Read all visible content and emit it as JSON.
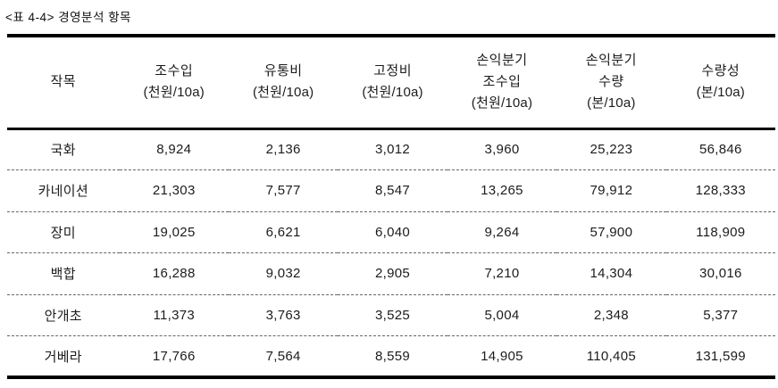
{
  "doc": {
    "caption": "<표 4-4> 경영분석 항목"
  },
  "table": {
    "columns": [
      {
        "line1": "작목",
        "line2": "",
        "unit": ""
      },
      {
        "line1": "조수입",
        "line2": "",
        "unit": "(천원/10a)"
      },
      {
        "line1": "유통비",
        "line2": "",
        "unit": "(천원/10a)"
      },
      {
        "line1": "고정비",
        "line2": "",
        "unit": "(천원/10a)"
      },
      {
        "line1": "손익분기",
        "line2": "조수입",
        "unit": "(천원/10a)"
      },
      {
        "line1": "손익분기",
        "line2": "수량",
        "unit": "(본/10a)"
      },
      {
        "line1": "수량성",
        "line2": "",
        "unit": "(본/10a)"
      }
    ],
    "rows": [
      {
        "crop": "국화",
        "values": [
          "8,924",
          "2,136",
          "3,012",
          "3,960",
          "25,223",
          "56,846"
        ]
      },
      {
        "crop": "카네이션",
        "values": [
          "21,303",
          "7,577",
          "8,547",
          "13,265",
          "79,912",
          "128,333"
        ]
      },
      {
        "crop": "장미",
        "values": [
          "19,025",
          "6,621",
          "6,040",
          "9,264",
          "57,900",
          "118,909"
        ]
      },
      {
        "crop": "백합",
        "values": [
          "16,288",
          "9,032",
          "2,905",
          "7,210",
          "14,304",
          "30,016"
        ]
      },
      {
        "crop": "안개초",
        "values": [
          "11,373",
          "3,763",
          "3,525",
          "5,004",
          "2,348",
          "5,377"
        ]
      },
      {
        "crop": "거베라",
        "values": [
          "17,766",
          "7,564",
          "8,559",
          "14,905",
          "110,405",
          "131,599"
        ]
      }
    ]
  },
  "chart_data": {
    "type": "table",
    "title": "경영분석 항목",
    "columns": [
      "작목",
      "조수입 (천원/10a)",
      "유통비 (천원/10a)",
      "고정비 (천원/10a)",
      "손익분기 조수입 (천원/10a)",
      "손익분기 수량 (본/10a)",
      "수량성 (본/10a)"
    ],
    "rows": [
      [
        "국화",
        8924,
        2136,
        3012,
        3960,
        25223,
        56846
      ],
      [
        "카네이션",
        21303,
        7577,
        8547,
        13265,
        79912,
        128333
      ],
      [
        "장미",
        19025,
        6621,
        6040,
        9264,
        57900,
        118909
      ],
      [
        "백합",
        16288,
        9032,
        2905,
        7210,
        14304,
        30016
      ],
      [
        "안개초",
        11373,
        3763,
        3525,
        5004,
        2348,
        5377
      ],
      [
        "거베라",
        17766,
        7564,
        8559,
        14905,
        110405,
        131599
      ]
    ]
  }
}
